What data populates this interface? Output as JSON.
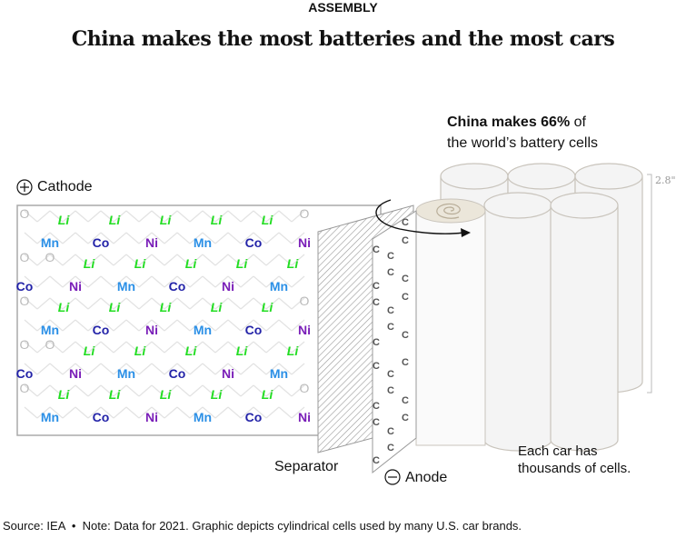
{
  "header": {
    "kicker": "ASSEMBLY",
    "title": "China makes the most batteries and the most cars"
  },
  "callout": {
    "bold": "China makes 66%",
    "rest1": " of",
    "line2": "the world’s battery cells"
  },
  "labels": {
    "cathode": "Cathode",
    "separator": "Separator",
    "anode": "Anode",
    "car_note_1": "Each car has",
    "car_note_2": "thousands of cells.",
    "height": "2.8\""
  },
  "icons": {
    "cathode": "plus-circle-icon",
    "anode": "minus-circle-icon"
  },
  "cathode_lattice": {
    "metal_rows": [
      [
        "Mn",
        "Co",
        "Ni",
        "Mn",
        "Co",
        "Ni"
      ],
      [
        "Co",
        "Ni",
        "Mn",
        "Co",
        "Ni",
        "Mn"
      ],
      [
        "Mn",
        "Co",
        "Ni",
        "Mn",
        "Co",
        "Ni"
      ],
      [
        "Co",
        "Ni",
        "Mn",
        "Co",
        "Ni",
        "Mn"
      ],
      [
        "Mn",
        "Co",
        "Ni",
        "Mn",
        "Co",
        "Ni"
      ]
    ],
    "lithium": "Li",
    "oxygen": "O",
    "colors": {
      "Mn": "#2a8fe6",
      "Co": "#2323a8",
      "Ni": "#7a1fb8",
      "Li": "#22dd22"
    }
  },
  "anode": {
    "carbon": "C"
  },
  "footer": {
    "source": "Source: IEA",
    "note": "Note: Data for 2021. Graphic depicts cylindrical cells used by many U.S. car brands."
  }
}
